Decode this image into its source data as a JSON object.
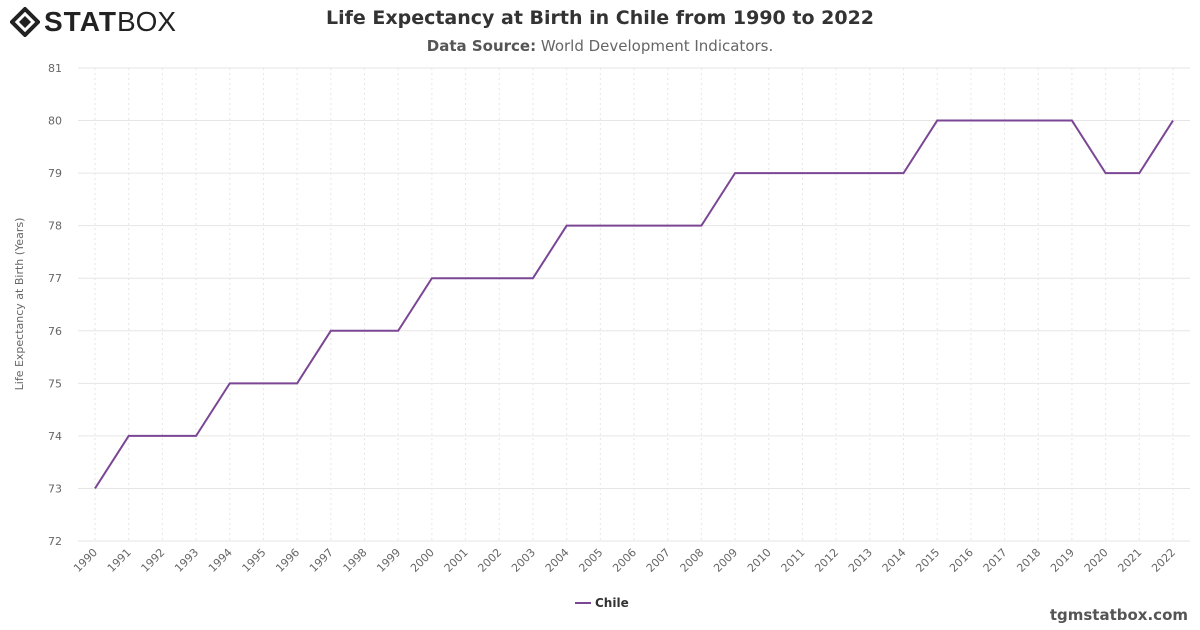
{
  "logo": {
    "text_bold": "STAT",
    "text_light": "BOX"
  },
  "header": {
    "title": "Life Expectancy at Birth in Chile from 1990 to 2022",
    "source_label": "Data Source:",
    "source_value": "World Development Indicators."
  },
  "credit": "tgmstatbox.com",
  "colors": {
    "series": "#7b4694",
    "grid": "#e6e6e6"
  },
  "chart_data": {
    "type": "line",
    "title": "Life Expectancy at Birth in Chile from 1990 to 2022",
    "xlabel": "",
    "ylabel": "Life Expectancy at Birth (Years)",
    "ylim": [
      72,
      81
    ],
    "yticks": [
      72,
      73,
      74,
      75,
      76,
      77,
      78,
      79,
      80,
      81
    ],
    "x": [
      "1990",
      "1991",
      "1992",
      "1993",
      "1994",
      "1995",
      "1996",
      "1997",
      "1998",
      "1999",
      "2000",
      "2001",
      "2002",
      "2003",
      "2004",
      "2005",
      "2006",
      "2007",
      "2008",
      "2009",
      "2010",
      "2011",
      "2012",
      "2013",
      "2014",
      "2015",
      "2016",
      "2017",
      "2018",
      "2019",
      "2020",
      "2021",
      "2022"
    ],
    "series": [
      {
        "name": "Chile",
        "values": [
          73,
          74,
          74,
          74,
          75,
          75,
          75,
          76,
          76,
          76,
          77,
          77,
          77,
          77,
          78,
          78,
          78,
          78,
          78,
          79,
          79,
          79,
          79,
          79,
          79,
          80,
          80,
          80,
          80,
          80,
          79,
          79,
          80
        ]
      }
    ],
    "grid": true,
    "legend": "bottom-center"
  }
}
